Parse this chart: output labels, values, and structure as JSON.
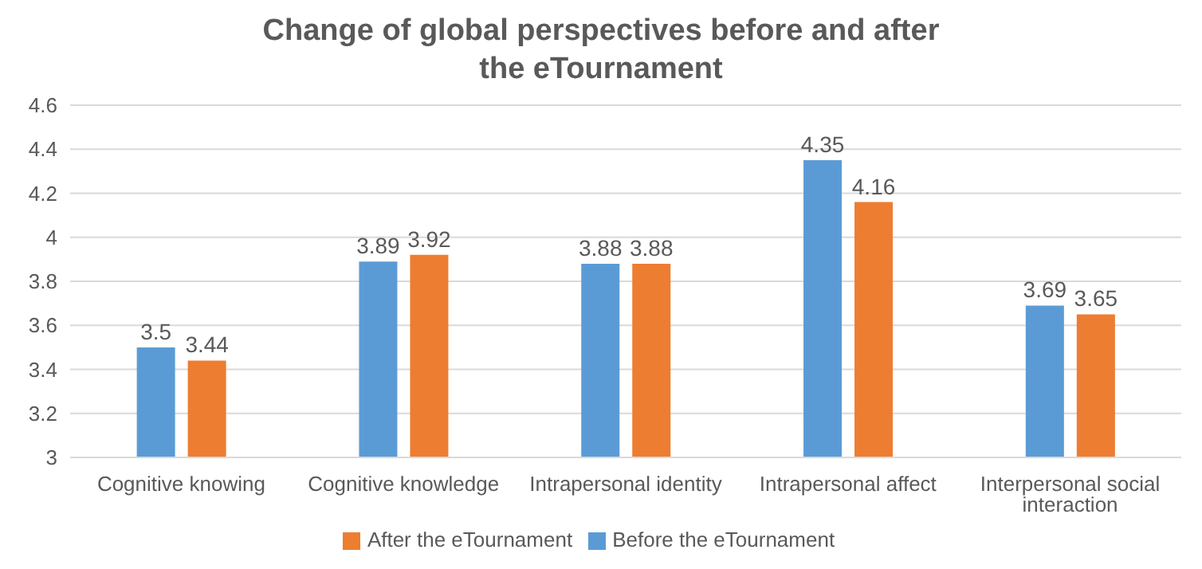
{
  "chart_data": {
    "type": "bar",
    "title": "Change of global perspectives before and after the eTournament",
    "categories": [
      "Cognitive knowing",
      "Cognitive knowledge",
      "Intrapersonal identity",
      "Intrapersonal affect",
      "Interpersonal social interaction"
    ],
    "series": [
      {
        "name": "Before the eTournament",
        "color": "#5b9bd5",
        "values": [
          3.5,
          3.89,
          3.88,
          4.35,
          3.69
        ]
      },
      {
        "name": "After the eTournament",
        "color": "#ed7d31",
        "values": [
          3.44,
          3.92,
          3.88,
          4.16,
          3.65
        ]
      }
    ],
    "ylim": [
      3,
      4.6
    ],
    "yticks": [
      3,
      3.2,
      3.4,
      3.6,
      3.8,
      4,
      4.2,
      4.4,
      4.6
    ],
    "grid": "y",
    "legend": "bottom",
    "data_labels": true
  }
}
